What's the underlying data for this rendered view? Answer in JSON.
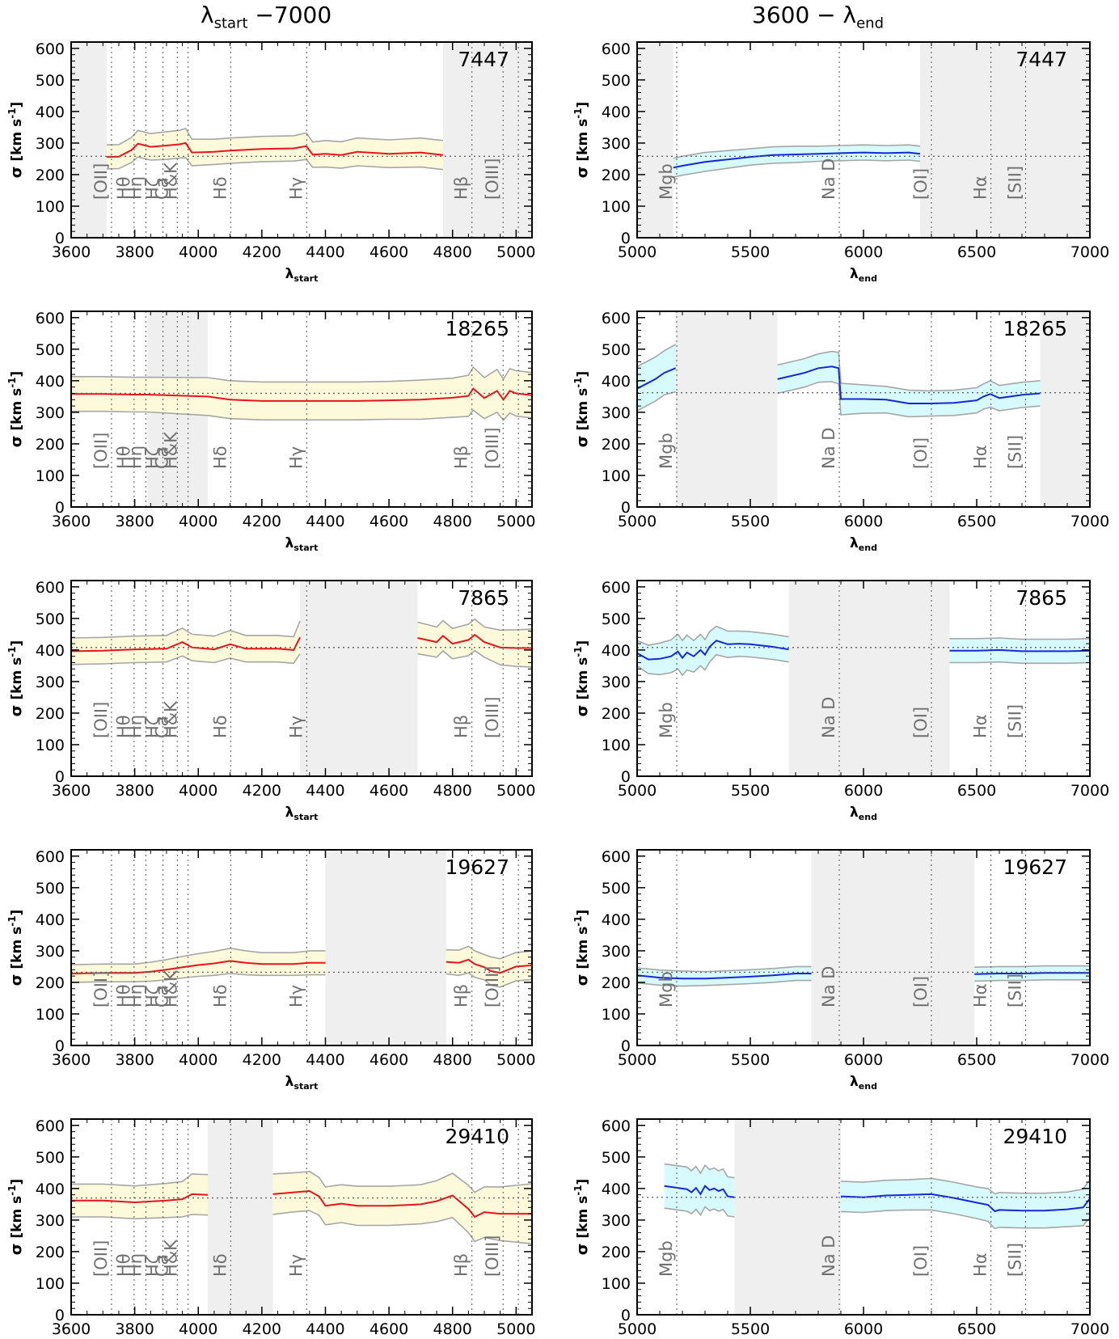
{
  "column_titles": {
    "left": {
      "sym": "λ",
      "sub": "start",
      "rest": " −7000"
    },
    "right": {
      "pre": "3600 − ",
      "sym": "λ",
      "sub": "end"
    }
  },
  "ylabel": {
    "sym": "σ",
    "text": " [km s",
    "exp": "-1",
    "close": "]"
  },
  "colors": {
    "left_line": "#e8141a",
    "left_band": "#fdfadb",
    "right_line": "#1428d8",
    "right_band": "#d7fafc",
    "band_edge": "#a6a6a6",
    "excluded": "#efefef",
    "refline": "#666666"
  },
  "left_lines": [
    {
      "label": "[OII]",
      "w": 3727
    },
    {
      "label": "Hθ",
      "w": 3798
    },
    {
      "label": "Hη",
      "w": 3835
    },
    {
      "label": "Hζ",
      "w": 3889
    },
    {
      "label": "Ca",
      "w": 3934
    },
    {
      "label": "H&K",
      "w": 3968
    },
    {
      "label": "Hδ",
      "w": 4102
    },
    {
      "label": "Hγ",
      "w": 4341
    },
    {
      "label": "Hβ",
      "w": 4861
    },
    {
      "label": "[OIII]",
      "w": 4959
    },
    {
      "label": "",
      "w": 5007
    }
  ],
  "right_lines": [
    {
      "label": "Mgb",
      "w": 5175
    },
    {
      "label": "Na D",
      "w": 5893
    },
    {
      "label": "[OI]",
      "w": 6300
    },
    {
      "label": "Hα",
      "w": 6563
    },
    {
      "label": "[SII]",
      "w": 6716
    }
  ],
  "chart_data": [
    {
      "type": "line",
      "id": "7447",
      "panel": "left",
      "xlabel": "λstart",
      "ylabel": "σ [km s-1]",
      "xlim": [
        3600,
        5050
      ],
      "ylim": [
        0,
        620
      ],
      "xticks": [
        3600,
        3800,
        4000,
        4200,
        4400,
        4600,
        4800,
        5000
      ],
      "yticks": [
        0,
        100,
        200,
        300,
        400,
        500,
        600
      ],
      "ref": 258,
      "excluded": [
        [
          3600,
          3712
        ],
        [
          4770,
          5050
        ]
      ],
      "x": [
        3712,
        3750,
        3790,
        3810,
        3850,
        3900,
        3940,
        3960,
        3980,
        4050,
        4100,
        4200,
        4300,
        4340,
        4360,
        4400,
        4450,
        4500,
        4600,
        4700,
        4770
      ],
      "y": [
        256,
        257,
        278,
        298,
        288,
        292,
        296,
        300,
        270,
        272,
        276,
        281,
        283,
        290,
        263,
        266,
        262,
        272,
        266,
        270,
        262
      ],
      "half_band": [
        38,
        38,
        40,
        42,
        42,
        44,
        44,
        46,
        42,
        40,
        40,
        40,
        40,
        42,
        40,
        42,
        42,
        44,
        44,
        46,
        46
      ]
    },
    {
      "type": "line",
      "id": "7447",
      "panel": "right",
      "xlabel": "λend",
      "ylabel": "σ [km s-1]",
      "xlim": [
        5000,
        7000
      ],
      "ylim": [
        0,
        620
      ],
      "xticks": [
        5000,
        5500,
        6000,
        6500,
        7000
      ],
      "yticks": [
        0,
        100,
        200,
        300,
        400,
        500,
        600
      ],
      "ref": 258,
      "excluded": [
        [
          5000,
          5160
        ],
        [
          6250,
          7000
        ]
      ],
      "x": [
        5160,
        5200,
        5300,
        5400,
        5500,
        5600,
        5700,
        5800,
        5900,
        6000,
        6100,
        6200,
        6250
      ],
      "y": [
        222,
        228,
        240,
        248,
        256,
        262,
        264,
        266,
        268,
        270,
        268,
        270,
        266
      ],
      "half_band": [
        30,
        30,
        30,
        28,
        26,
        26,
        26,
        24,
        24,
        24,
        24,
        24,
        24
      ]
    },
    {
      "type": "line",
      "id": "18265",
      "panel": "left",
      "xlabel": "λstart",
      "ylabel": "σ [km s-1]",
      "xlim": [
        3600,
        5050
      ],
      "ylim": [
        0,
        620
      ],
      "xticks": [
        3600,
        3800,
        4000,
        4200,
        4400,
        4600,
        4800,
        5000
      ],
      "yticks": [
        0,
        100,
        200,
        300,
        400,
        500,
        600
      ],
      "ref": 360,
      "excluded": [
        [
          3840,
          4030
        ]
      ],
      "x": [
        3600,
        3700,
        3800,
        3840,
        4030,
        4100,
        4200,
        4300,
        4400,
        4500,
        4600,
        4700,
        4800,
        4850,
        4865,
        4900,
        4940,
        4960,
        4980,
        5000,
        5050
      ],
      "y": [
        358,
        358,
        356,
        356,
        350,
        340,
        336,
        336,
        336,
        336,
        338,
        340,
        346,
        352,
        375,
        345,
        368,
        340,
        368,
        360,
        354
      ],
      "half_band": [
        55,
        55,
        55,
        55,
        60,
        60,
        60,
        60,
        60,
        60,
        60,
        62,
        62,
        65,
        68,
        65,
        68,
        65,
        70,
        72,
        72
      ]
    },
    {
      "type": "line",
      "id": "18265",
      "panel": "right",
      "xlabel": "λend",
      "ylabel": "σ [km s-1]",
      "xlim": [
        5000,
        7000
      ],
      "ylim": [
        0,
        620
      ],
      "xticks": [
        5000,
        5500,
        6000,
        6500,
        7000
      ],
      "yticks": [
        0,
        100,
        200,
        300,
        400,
        500,
        600
      ],
      "ref": 362,
      "excluded": [
        [
          5170,
          5620
        ],
        [
          6780,
          7000
        ]
      ],
      "segments": [
        {
          "x": [
            5000,
            5040,
            5080,
            5120,
            5170
          ],
          "y": [
            375,
            390,
            405,
            425,
            440
          ],
          "half_band": [
            70,
            70,
            70,
            70,
            75
          ]
        },
        {
          "x": [
            5620,
            5680,
            5740,
            5800,
            5860,
            5890,
            5900,
            6000,
            6100,
            6200,
            6300,
            6400,
            6500,
            6530,
            6560,
            6600,
            6700,
            6780
          ],
          "y": [
            405,
            415,
            425,
            440,
            445,
            440,
            342,
            342,
            340,
            328,
            328,
            330,
            338,
            350,
            358,
            345,
            355,
            360
          ],
          "half_band": [
            45,
            45,
            45,
            45,
            48,
            50,
            50,
            45,
            42,
            42,
            40,
            40,
            40,
            40,
            42,
            40,
            40,
            40
          ]
        }
      ]
    },
    {
      "type": "line",
      "id": "7865",
      "panel": "left",
      "xlabel": "λstart",
      "ylabel": "σ [km s-1]",
      "xlim": [
        3600,
        5050
      ],
      "ylim": [
        0,
        620
      ],
      "xticks": [
        3600,
        3800,
        4000,
        4200,
        4400,
        4600,
        4800,
        5000
      ],
      "yticks": [
        0,
        100,
        200,
        300,
        400,
        500,
        600
      ],
      "ref": 408,
      "excluded": [
        [
          4320,
          4690
        ]
      ],
      "segments": [
        {
          "x": [
            3600,
            3700,
            3800,
            3900,
            3950,
            3980,
            4050,
            4100,
            4150,
            4250,
            4300,
            4320
          ],
          "y": [
            396,
            398,
            402,
            404,
            425,
            408,
            402,
            418,
            404,
            404,
            400,
            440
          ],
          "half_band": [
            42,
            42,
            42,
            42,
            44,
            42,
            42,
            44,
            42,
            42,
            42,
            52
          ]
        },
        {
          "x": [
            4690,
            4750,
            4770,
            4800,
            4850,
            4870,
            4900,
            4950,
            5000,
            5050
          ],
          "y": [
            438,
            425,
            445,
            420,
            432,
            448,
            425,
            408,
            406,
            406
          ],
          "half_band": [
            50,
            48,
            48,
            48,
            50,
            50,
            48,
            55,
            58,
            60
          ]
        }
      ]
    },
    {
      "type": "line",
      "id": "7865",
      "panel": "right",
      "xlabel": "λend",
      "ylabel": "σ [km s-1]",
      "xlim": [
        5000,
        7000
      ],
      "ylim": [
        0,
        620
      ],
      "xticks": [
        5000,
        5500,
        6000,
        6500,
        7000
      ],
      "yticks": [
        0,
        100,
        200,
        300,
        400,
        500,
        600
      ],
      "ref": 408,
      "excluded": [
        [
          5670,
          6380
        ]
      ],
      "segments": [
        {
          "x": [
            5000,
            5050,
            5100,
            5150,
            5180,
            5200,
            5220,
            5250,
            5280,
            5300,
            5320,
            5350,
            5400,
            5450,
            5500,
            5600,
            5670
          ],
          "y": [
            390,
            370,
            372,
            380,
            395,
            375,
            392,
            380,
            400,
            385,
            410,
            430,
            418,
            420,
            418,
            410,
            402
          ],
          "half_band": [
            40,
            45,
            50,
            52,
            55,
            55,
            55,
            50,
            50,
            48,
            48,
            45,
            42,
            40,
            40,
            40,
            40
          ]
        },
        {
          "x": [
            6380,
            6500,
            6600,
            6700,
            6800,
            6900,
            7000
          ],
          "y": [
            398,
            398,
            400,
            396,
            396,
            396,
            398
          ],
          "half_band": [
            38,
            38,
            38,
            38,
            38,
            38,
            38
          ]
        }
      ]
    },
    {
      "type": "line",
      "id": "19627",
      "panel": "left",
      "xlabel": "λstart",
      "ylabel": "σ [km s-1]",
      "xlim": [
        3600,
        5050
      ],
      "ylim": [
        0,
        620
      ],
      "xticks": [
        3600,
        3800,
        4000,
        4200,
        4400,
        4600,
        4800,
        5000
      ],
      "yticks": [
        0,
        100,
        200,
        300,
        400,
        500,
        600
      ],
      "ref": 232,
      "excluded": [
        [
          4400,
          4780
        ]
      ],
      "segments": [
        {
          "x": [
            3600,
            3700,
            3800,
            3850,
            3900,
            3950,
            4000,
            4050,
            4100,
            4150,
            4200,
            4300,
            4350,
            4400
          ],
          "y": [
            228,
            230,
            230,
            234,
            240,
            248,
            255,
            260,
            268,
            262,
            258,
            258,
            262,
            262
          ],
          "half_band": [
            28,
            28,
            28,
            30,
            32,
            34,
            36,
            38,
            40,
            38,
            36,
            36,
            38,
            38
          ]
        },
        {
          "x": [
            4780,
            4820,
            4850,
            4870,
            4900,
            4920,
            4950,
            5000,
            5050
          ],
          "y": [
            265,
            262,
            272,
            258,
            248,
            236,
            230,
            250,
            254
          ],
          "half_band": [
            38,
            40,
            42,
            42,
            40,
            45,
            45,
            45,
            45
          ]
        }
      ]
    },
    {
      "type": "line",
      "id": "19627",
      "panel": "right",
      "xlabel": "λend",
      "ylabel": "σ [km s-1]",
      "xlim": [
        5000,
        7000
      ],
      "ylim": [
        0,
        620
      ],
      "xticks": [
        5000,
        5500,
        6000,
        6500,
        7000
      ],
      "yticks": [
        0,
        100,
        200,
        300,
        400,
        500,
        600
      ],
      "ref": 232,
      "excluded": [
        [
          5770,
          6490
        ]
      ],
      "segments": [
        {
          "x": [
            5000,
            5100,
            5200,
            5300,
            5400,
            5500,
            5600,
            5700,
            5770
          ],
          "y": [
            222,
            215,
            212,
            212,
            215,
            218,
            222,
            228,
            228
          ],
          "half_band": [
            24,
            24,
            24,
            22,
            22,
            22,
            22,
            22,
            22
          ]
        },
        {
          "x": [
            6490,
            6600,
            6700,
            6800,
            6900,
            7000
          ],
          "y": [
            226,
            228,
            228,
            230,
            230,
            230
          ],
          "half_band": [
            22,
            22,
            22,
            22,
            22,
            22
          ]
        }
      ]
    },
    {
      "type": "line",
      "id": "29410",
      "panel": "left",
      "xlabel": "λstart",
      "ylabel": "σ [km s-1]",
      "xlim": [
        3600,
        5050
      ],
      "ylim": [
        0,
        620
      ],
      "xticks": [
        3600,
        3800,
        4000,
        4200,
        4400,
        4600,
        4800,
        5000
      ],
      "yticks": [
        0,
        100,
        200,
        300,
        400,
        500,
        600
      ],
      "ref": 370,
      "excluded": [
        [
          4030,
          4235
        ]
      ],
      "segments": [
        {
          "x": [
            3600,
            3700,
            3800,
            3900,
            3950,
            3980,
            4030
          ],
          "y": [
            362,
            362,
            356,
            362,
            366,
            382,
            380
          ],
          "half_band": [
            52,
            52,
            52,
            54,
            56,
            64,
            64
          ]
        },
        {
          "x": [
            4235,
            4300,
            4350,
            4380,
            4400,
            4450,
            4500,
            4600,
            4700,
            4750,
            4800,
            4850,
            4870,
            4900,
            4950,
            5000,
            5050
          ],
          "y": [
            382,
            388,
            392,
            375,
            345,
            352,
            345,
            345,
            350,
            360,
            378,
            335,
            310,
            325,
            320,
            320,
            320
          ],
          "half_band": [
            64,
            62,
            62,
            60,
            60,
            60,
            62,
            62,
            62,
            65,
            70,
            75,
            78,
            80,
            85,
            90,
            95
          ]
        }
      ]
    },
    {
      "type": "line",
      "id": "29410",
      "panel": "right",
      "xlabel": "λend",
      "ylabel": "σ [km s-1]",
      "xlim": [
        5000,
        7000
      ],
      "ylim": [
        0,
        620
      ],
      "xticks": [
        5000,
        5500,
        6000,
        6500,
        7000
      ],
      "yticks": [
        0,
        100,
        200,
        300,
        400,
        500,
        600
      ],
      "ref": 372,
      "excluded": [
        [
          5430,
          5900
        ]
      ],
      "segments": [
        {
          "x": [
            5120,
            5180,
            5220,
            5240,
            5260,
            5280,
            5300,
            5320,
            5340,
            5360,
            5380,
            5400,
            5430
          ],
          "y": [
            408,
            402,
            398,
            388,
            402,
            382,
            408,
            395,
            400,
            392,
            398,
            375,
            372
          ],
          "half_band": [
            70,
            70,
            70,
            68,
            68,
            66,
            66,
            65,
            65,
            64,
            64,
            62,
            62
          ]
        },
        {
          "x": [
            5900,
            6000,
            6100,
            6200,
            6300,
            6400,
            6500,
            6550,
            6580,
            6600,
            6700,
            6800,
            6900,
            6970,
            7000
          ],
          "y": [
            375,
            372,
            378,
            380,
            382,
            370,
            355,
            348,
            328,
            332,
            330,
            330,
            334,
            340,
            368
          ],
          "half_band": [
            48,
            48,
            48,
            48,
            50,
            50,
            50,
            52,
            55,
            55,
            55,
            55,
            55,
            58,
            60
          ]
        }
      ]
    }
  ]
}
